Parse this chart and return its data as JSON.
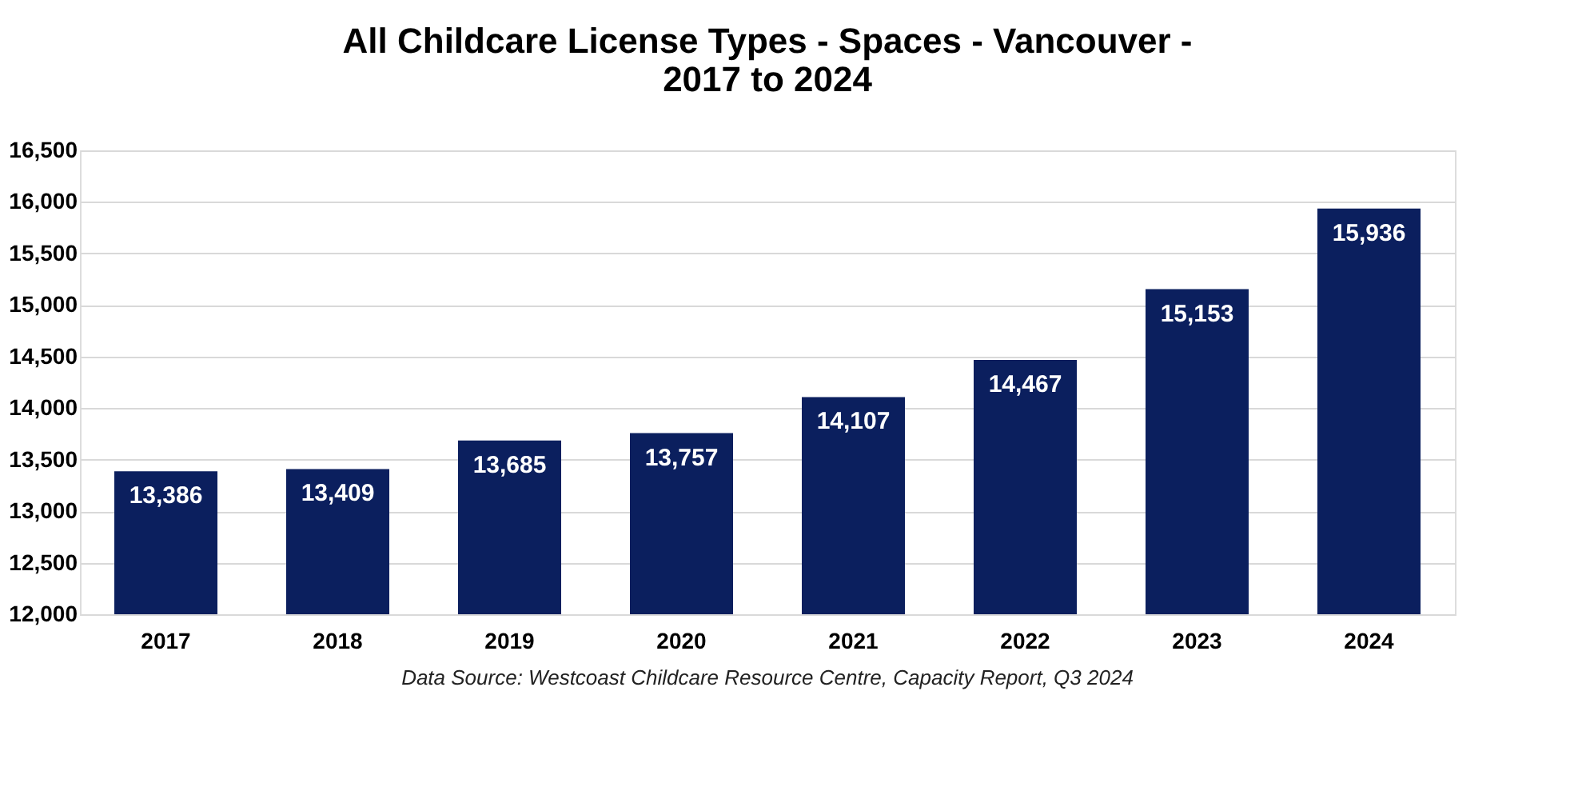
{
  "chart_data": {
    "type": "bar",
    "title": [
      "All Childcare License Types - Spaces - Vancouver -",
      "2017 to 2024"
    ],
    "categories": [
      "2017",
      "2018",
      "2019",
      "2020",
      "2021",
      "2022",
      "2023",
      "2024"
    ],
    "values": [
      13386,
      13409,
      13685,
      13757,
      14107,
      14467,
      15153,
      15936
    ],
    "color": "#0b1f5e",
    "ylim": [
      12000,
      16500
    ],
    "yticks": [
      {
        "value": 12000,
        "label": "12,000"
      },
      {
        "value": 12500,
        "label": "12,500"
      },
      {
        "value": 13000,
        "label": "13,000"
      },
      {
        "value": 13500,
        "label": "13,500"
      },
      {
        "value": 14000,
        "label": "14,000"
      },
      {
        "value": 14500,
        "label": "14,500"
      },
      {
        "value": 15000,
        "label": "15,000"
      },
      {
        "value": 15500,
        "label": "15,500"
      },
      {
        "value": 16000,
        "label": "16,000"
      },
      {
        "value": 16500,
        "label": "16,500"
      }
    ],
    "value_labels": [
      "13,386",
      "13,409",
      "13,685",
      "13,757",
      "14,107",
      "14,467",
      "15,153",
      "15,936"
    ],
    "grid": "y",
    "annotations": [
      "Data Source: Westcoast Childcare Resource Centre, Capacity Report, Q3 2024"
    ]
  }
}
